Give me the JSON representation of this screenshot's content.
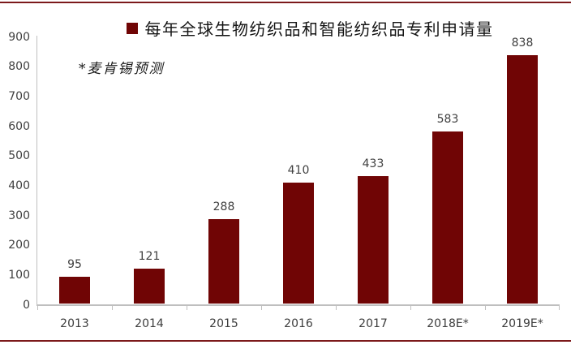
{
  "page": {
    "background": "#FFFFFF",
    "border_color": "#7C191B"
  },
  "legend": {
    "marker_color": "#700505",
    "label": "每年全球生物纺织品和智能纺织品专利申请量"
  },
  "annotation": "*麦肯锡预测",
  "chart_data": {
    "type": "bar",
    "title": "每年全球生物纺织品和智能纺织品专利申请量",
    "annotation": "*麦肯锡预测",
    "categories": [
      "2013",
      "2014",
      "2015",
      "2016",
      "2017",
      "2018E*",
      "2019E*"
    ],
    "values": [
      95,
      121,
      288,
      410,
      433,
      583,
      838
    ],
    "xlabel": "",
    "ylabel": "",
    "ylim": [
      0,
      900
    ],
    "y_ticks": [
      0,
      100,
      200,
      300,
      400,
      500,
      600,
      700,
      800,
      900
    ],
    "grid": false,
    "legend_position": "top-center",
    "bar_color": "#700505",
    "axis_color": "#BFBFBF",
    "value_label_color": "#404040",
    "data_labels_shown": true
  }
}
